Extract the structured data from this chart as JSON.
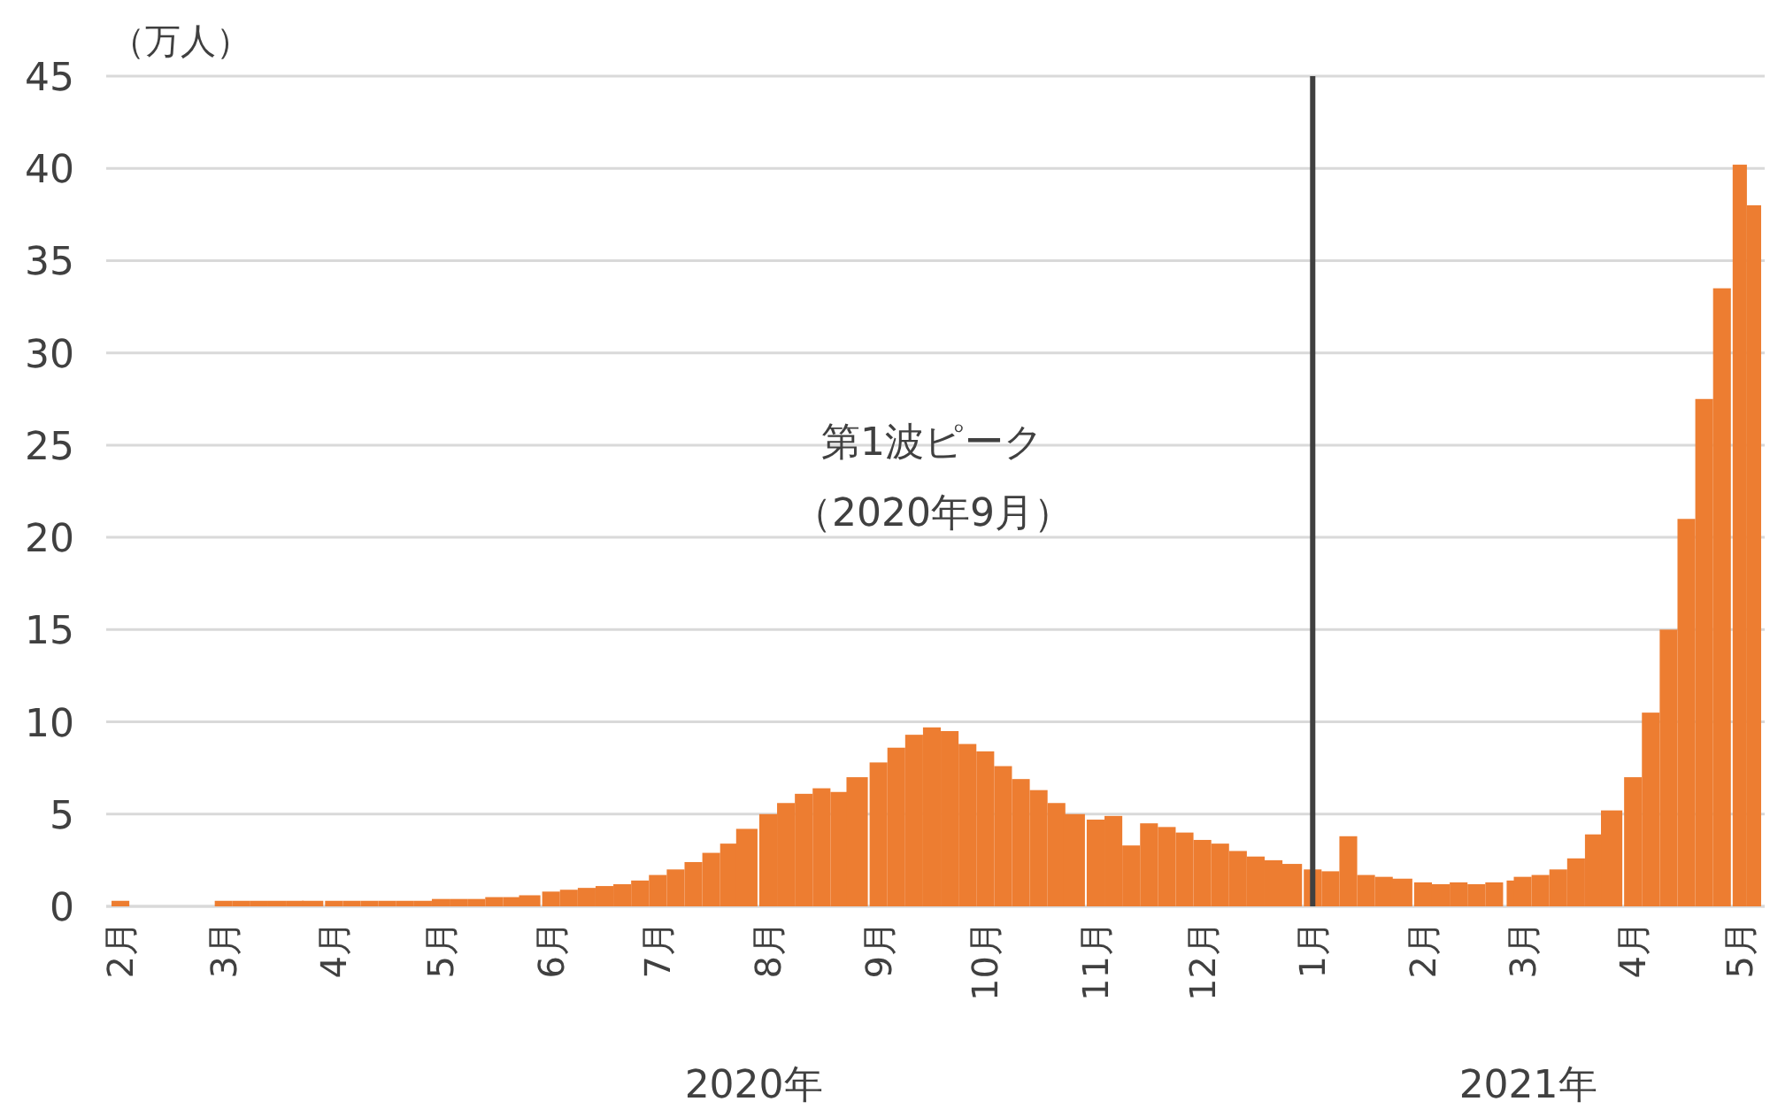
{
  "chart_data": {
    "type": "bar",
    "ylabel": "（万人）",
    "color": "#ed7d31",
    "grid": "y",
    "x": [
      "2020-02-01",
      "2020-02-06",
      "2020-02-11",
      "2020-02-16",
      "2020-02-21",
      "2020-02-26",
      "2020-03-01",
      "2020-03-06",
      "2020-03-11",
      "2020-03-16",
      "2020-03-21",
      "2020-03-26",
      "2020-04-01",
      "2020-04-06",
      "2020-04-11",
      "2020-04-16",
      "2020-04-21",
      "2020-04-26",
      "2020-05-01",
      "2020-05-06",
      "2020-05-11",
      "2020-05-16",
      "2020-05-21",
      "2020-05-26",
      "2020-06-01",
      "2020-06-06",
      "2020-06-11",
      "2020-06-16",
      "2020-06-21",
      "2020-06-26",
      "2020-07-01",
      "2020-07-06",
      "2020-07-11",
      "2020-07-16",
      "2020-07-21",
      "2020-07-26",
      "2020-08-01",
      "2020-08-06",
      "2020-08-11",
      "2020-08-16",
      "2020-08-21",
      "2020-08-26",
      "2020-09-01",
      "2020-09-06",
      "2020-09-11",
      "2020-09-16",
      "2020-09-21",
      "2020-09-26",
      "2020-10-01",
      "2020-10-06",
      "2020-10-11",
      "2020-10-16",
      "2020-10-21",
      "2020-10-26",
      "2020-11-01",
      "2020-11-06",
      "2020-11-11",
      "2020-11-16",
      "2020-11-21",
      "2020-11-26",
      "2020-12-01",
      "2020-12-06",
      "2020-12-11",
      "2020-12-16",
      "2020-12-21",
      "2020-12-26",
      "2021-01-01",
      "2021-01-06",
      "2021-01-11",
      "2021-01-16",
      "2021-01-21",
      "2021-01-26",
      "2021-02-01",
      "2021-02-06",
      "2021-02-11",
      "2021-02-16",
      "2021-02-21",
      "2021-02-26",
      "2021-03-01",
      "2021-03-06",
      "2021-03-11",
      "2021-03-16",
      "2021-03-21",
      "2021-03-26",
      "2021-04-01",
      "2021-04-06",
      "2021-04-11",
      "2021-04-16",
      "2021-04-21",
      "2021-04-26",
      "2021-05-01",
      "2021-05-05"
    ],
    "values": [
      0.3,
      0,
      0,
      0,
      0,
      0,
      0.3,
      0.3,
      0.3,
      0.3,
      0.3,
      0.3,
      0.3,
      0.3,
      0.3,
      0.3,
      0.3,
      0.3,
      0.4,
      0.4,
      0.4,
      0.5,
      0.5,
      0.6,
      0.8,
      0.9,
      1.0,
      1.1,
      1.2,
      1.4,
      1.7,
      2.0,
      2.4,
      2.9,
      3.4,
      4.2,
      5.0,
      5.6,
      6.1,
      6.4,
      6.2,
      7.0,
      7.8,
      8.6,
      9.3,
      9.7,
      9.5,
      8.8,
      8.4,
      7.6,
      6.9,
      6.3,
      5.6,
      5.0,
      4.7,
      4.9,
      3.3,
      4.5,
      4.3,
      4.0,
      3.6,
      3.4,
      3.0,
      2.7,
      2.5,
      2.3,
      2.0,
      1.9,
      3.8,
      1.7,
      1.6,
      1.5,
      1.3,
      1.2,
      1.3,
      1.2,
      1.3,
      1.4,
      1.6,
      1.7,
      2.0,
      2.6,
      3.9,
      5.2,
      7.0,
      10.5,
      15.0,
      21.0,
      27.5,
      33.5,
      40.2,
      38.0
    ],
    "xlim": [
      "2020-01-28",
      "2021-05-08"
    ],
    "xticks": [
      {
        "value": "2020-02-01",
        "label": "2月"
      },
      {
        "value": "2020-03-01",
        "label": "3月"
      },
      {
        "value": "2020-04-01",
        "label": "4月"
      },
      {
        "value": "2020-05-01",
        "label": "5月"
      },
      {
        "value": "2020-06-01",
        "label": "6月"
      },
      {
        "value": "2020-07-01",
        "label": "7月"
      },
      {
        "value": "2020-08-01",
        "label": "8月"
      },
      {
        "value": "2020-09-01",
        "label": "9月"
      },
      {
        "value": "2020-10-01",
        "label": "10月"
      },
      {
        "value": "2020-11-01",
        "label": "11月"
      },
      {
        "value": "2020-12-01",
        "label": "12月"
      },
      {
        "value": "2021-01-01",
        "label": "1月"
      },
      {
        "value": "2021-02-01",
        "label": "2月"
      },
      {
        "value": "2021-03-01",
        "label": "3月"
      },
      {
        "value": "2021-04-01",
        "label": "4月"
      },
      {
        "value": "2021-05-01",
        "label": "5月"
      }
    ],
    "ylim": [
      0,
      45
    ],
    "yticks": [
      0,
      5,
      10,
      15,
      20,
      25,
      30,
      35,
      40,
      45
    ],
    "ref_lines": [
      {
        "axis": "x",
        "value": "2021-01-01",
        "color": "#404040"
      }
    ],
    "annotations": [
      "第1波ピーク",
      "（2020年9月）",
      "2020年",
      "2021年"
    ]
  }
}
